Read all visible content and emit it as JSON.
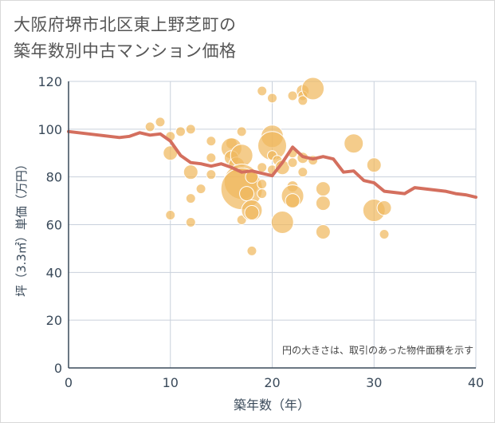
{
  "title_line1": "大阪府堺市北区東上野芝町の",
  "title_line2": "築年数別中古マンション価格",
  "chart_data": {
    "type": "scatter",
    "xlabel": "築年数（年）",
    "ylabel": "坪（3.3㎡）単価（万円）",
    "xlim": [
      0,
      40
    ],
    "ylim": [
      0,
      120
    ],
    "xticks": [
      0,
      10,
      20,
      30,
      40
    ],
    "yticks": [
      0,
      20,
      40,
      60,
      80,
      100,
      120
    ],
    "grid": true,
    "note": "円の大きさは、取引のあった物件面積を示す",
    "colors": {
      "bubble": "#f0b95e",
      "line": "#d46f5e",
      "axis": "#3a4a5a",
      "grid": "#c9d1dc"
    },
    "line": {
      "x": [
        0,
        1,
        2,
        3,
        4,
        5,
        6,
        7,
        8,
        9,
        10,
        11,
        12,
        13,
        14,
        15,
        16,
        17,
        18,
        19,
        20,
        21,
        22,
        23,
        24,
        25,
        26,
        27,
        28,
        29,
        30,
        31,
        32,
        33,
        34,
        35,
        36,
        37,
        38,
        39,
        40
      ],
      "y": [
        99,
        98.5,
        98,
        97.5,
        97,
        96.5,
        97,
        98.5,
        97.5,
        98,
        95,
        89,
        86,
        85.5,
        84.5,
        85.5,
        84,
        82,
        82.5,
        81.5,
        80.5,
        86,
        92.5,
        88.5,
        87.5,
        88.5,
        87.5,
        82,
        82.5,
        78.5,
        77.5,
        74,
        73.5,
        73,
        75.5,
        75,
        74.5,
        74,
        73,
        72.5,
        71.5
      ]
    },
    "bubbles": [
      {
        "x": 8,
        "y": 101,
        "r": 6
      },
      {
        "x": 9,
        "y": 103,
        "r": 6
      },
      {
        "x": 10,
        "y": 97,
        "r": 6
      },
      {
        "x": 10,
        "y": 90,
        "r": 9
      },
      {
        "x": 10,
        "y": 64,
        "r": 6
      },
      {
        "x": 11,
        "y": 99,
        "r": 6
      },
      {
        "x": 12,
        "y": 100,
        "r": 6
      },
      {
        "x": 12,
        "y": 82,
        "r": 9
      },
      {
        "x": 12,
        "y": 71,
        "r": 6
      },
      {
        "x": 12,
        "y": 61,
        "r": 6
      },
      {
        "x": 13,
        "y": 75,
        "r": 6
      },
      {
        "x": 14,
        "y": 95,
        "r": 6
      },
      {
        "x": 14,
        "y": 81,
        "r": 6
      },
      {
        "x": 14,
        "y": 88,
        "r": 6
      },
      {
        "x": 16,
        "y": 94,
        "r": 7
      },
      {
        "x": 16,
        "y": 92,
        "r": 13
      },
      {
        "x": 16,
        "y": 88,
        "r": 9
      },
      {
        "x": 16.5,
        "y": 85,
        "r": 10
      },
      {
        "x": 17,
        "y": 99,
        "r": 6
      },
      {
        "x": 17,
        "y": 89,
        "r": 14
      },
      {
        "x": 17,
        "y": 78,
        "r": 22
      },
      {
        "x": 17,
        "y": 75,
        "r": 26
      },
      {
        "x": 17,
        "y": 62,
        "r": 6
      },
      {
        "x": 17.5,
        "y": 73,
        "r": 9
      },
      {
        "x": 18,
        "y": 80,
        "r": 8
      },
      {
        "x": 18,
        "y": 66,
        "r": 13
      },
      {
        "x": 18,
        "y": 65,
        "r": 9
      },
      {
        "x": 18,
        "y": 49,
        "r": 6
      },
      {
        "x": 19,
        "y": 116,
        "r": 6
      },
      {
        "x": 19,
        "y": 77,
        "r": 6
      },
      {
        "x": 19,
        "y": 73,
        "r": 6
      },
      {
        "x": 19,
        "y": 84,
        "r": 6
      },
      {
        "x": 20,
        "y": 113,
        "r": 6
      },
      {
        "x": 20,
        "y": 97,
        "r": 14
      },
      {
        "x": 20,
        "y": 93,
        "r": 18
      },
      {
        "x": 20,
        "y": 89,
        "r": 6
      },
      {
        "x": 20,
        "y": 83,
        "r": 6
      },
      {
        "x": 20.5,
        "y": 87,
        "r": 6
      },
      {
        "x": 21,
        "y": 84,
        "r": 9
      },
      {
        "x": 21,
        "y": 61,
        "r": 14
      },
      {
        "x": 22,
        "y": 114,
        "r": 6
      },
      {
        "x": 22,
        "y": 90,
        "r": 6
      },
      {
        "x": 22,
        "y": 86,
        "r": 6
      },
      {
        "x": 22,
        "y": 76,
        "r": 7
      },
      {
        "x": 22,
        "y": 72,
        "r": 14
      },
      {
        "x": 22,
        "y": 70,
        "r": 9
      },
      {
        "x": 23,
        "y": 116,
        "r": 8
      },
      {
        "x": 23,
        "y": 114,
        "r": 6
      },
      {
        "x": 23,
        "y": 112,
        "r": 6
      },
      {
        "x": 23,
        "y": 88,
        "r": 7
      },
      {
        "x": 23,
        "y": 82,
        "r": 6
      },
      {
        "x": 24,
        "y": 117,
        "r": 14
      },
      {
        "x": 24,
        "y": 87,
        "r": 6
      },
      {
        "x": 25,
        "y": 75,
        "r": 9
      },
      {
        "x": 25,
        "y": 69,
        "r": 9
      },
      {
        "x": 25,
        "y": 57,
        "r": 9
      },
      {
        "x": 28,
        "y": 94,
        "r": 12
      },
      {
        "x": 30,
        "y": 85,
        "r": 9
      },
      {
        "x": 30,
        "y": 66,
        "r": 14
      },
      {
        "x": 31,
        "y": 67,
        "r": 9
      },
      {
        "x": 31,
        "y": 56,
        "r": 6
      }
    ]
  }
}
